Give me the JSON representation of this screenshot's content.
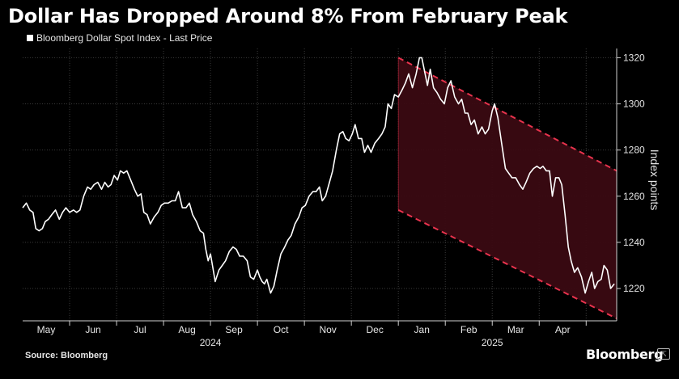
{
  "header": {
    "title": "Dollar Has Dropped Around 8% From February Peak",
    "legend_label": "Bloomberg Dollar Spot Index - Last Price"
  },
  "footer": {
    "source": "Source: Bloomberg",
    "brand": "Bloomberg"
  },
  "colors": {
    "background": "#000000",
    "line": "#ffffff",
    "grid": "#3a3a3a",
    "channel": "#e8334d",
    "channel_fill": "#3a0a12"
  },
  "chart_data": {
    "type": "line",
    "title": "Dollar Has Dropped Around 8% From February Peak",
    "series_name": "Bloomberg Dollar Spot Index - Last Price",
    "ylabel": "Index points",
    "ylim": [
      1206,
      1324
    ],
    "yticks": [
      1220,
      1240,
      1260,
      1280,
      1300,
      1320
    ],
    "xlim": [
      0,
      12.65
    ],
    "months": [
      {
        "label": "May",
        "x": 0.5
      },
      {
        "label": "Jun",
        "x": 1.5
      },
      {
        "label": "Jul",
        "x": 2.5
      },
      {
        "label": "Aug",
        "x": 3.5
      },
      {
        "label": "Sep",
        "x": 4.5
      },
      {
        "label": "Oct",
        "x": 5.5
      },
      {
        "label": "Nov",
        "x": 6.5
      },
      {
        "label": "Dec",
        "x": 7.5
      },
      {
        "label": "Jan",
        "x": 8.5
      },
      {
        "label": "Feb",
        "x": 9.5
      },
      {
        "label": "Mar",
        "x": 10.5
      },
      {
        "label": "Apr",
        "x": 11.5
      }
    ],
    "month_gridlines": [
      1,
      2,
      3,
      4,
      5,
      6,
      7,
      8,
      9,
      10,
      11,
      12
    ],
    "years": [
      {
        "label": "2024",
        "x": 4.0
      },
      {
        "label": "2025",
        "x": 10.0
      }
    ],
    "channel": {
      "upper": [
        [
          8.0,
          1320
        ],
        [
          12.65,
          1271
        ]
      ],
      "lower": [
        [
          8.0,
          1254
        ],
        [
          12.65,
          1207
        ]
      ]
    },
    "points": [
      [
        0.0,
        1255
      ],
      [
        0.08,
        1257
      ],
      [
        0.15,
        1254
      ],
      [
        0.22,
        1253
      ],
      [
        0.28,
        1246
      ],
      [
        0.35,
        1245
      ],
      [
        0.42,
        1246
      ],
      [
        0.48,
        1249
      ],
      [
        0.55,
        1250
      ],
      [
        0.62,
        1252
      ],
      [
        0.7,
        1254
      ],
      [
        0.78,
        1250
      ],
      [
        0.85,
        1253
      ],
      [
        0.92,
        1255
      ],
      [
        1.0,
        1253
      ],
      [
        1.08,
        1254
      ],
      [
        1.15,
        1253
      ],
      [
        1.22,
        1254
      ],
      [
        1.3,
        1260
      ],
      [
        1.38,
        1264
      ],
      [
        1.45,
        1263
      ],
      [
        1.52,
        1265
      ],
      [
        1.6,
        1266
      ],
      [
        1.68,
        1263
      ],
      [
        1.75,
        1266
      ],
      [
        1.82,
        1264
      ],
      [
        1.88,
        1265
      ],
      [
        1.95,
        1269
      ],
      [
        2.02,
        1267
      ],
      [
        2.08,
        1271
      ],
      [
        2.15,
        1270
      ],
      [
        2.22,
        1271
      ],
      [
        2.3,
        1267
      ],
      [
        2.38,
        1263
      ],
      [
        2.45,
        1260
      ],
      [
        2.52,
        1261
      ],
      [
        2.58,
        1253
      ],
      [
        2.65,
        1252
      ],
      [
        2.72,
        1248
      ],
      [
        2.8,
        1251
      ],
      [
        2.88,
        1253
      ],
      [
        2.95,
        1256
      ],
      [
        3.02,
        1257
      ],
      [
        3.1,
        1257
      ],
      [
        3.18,
        1258
      ],
      [
        3.25,
        1258
      ],
      [
        3.32,
        1262
      ],
      [
        3.4,
        1255
      ],
      [
        3.48,
        1255
      ],
      [
        3.55,
        1257
      ],
      [
        3.62,
        1252
      ],
      [
        3.7,
        1249
      ],
      [
        3.78,
        1245
      ],
      [
        3.85,
        1244
      ],
      [
        3.9,
        1237
      ],
      [
        3.95,
        1232
      ],
      [
        4.0,
        1235
      ],
      [
        4.05,
        1229
      ],
      [
        4.1,
        1223
      ],
      [
        4.18,
        1228
      ],
      [
        4.25,
        1230
      ],
      [
        4.32,
        1232
      ],
      [
        4.4,
        1236
      ],
      [
        4.48,
        1238
      ],
      [
        4.55,
        1237
      ],
      [
        4.62,
        1234
      ],
      [
        4.7,
        1234
      ],
      [
        4.78,
        1232
      ],
      [
        4.85,
        1225
      ],
      [
        4.92,
        1224
      ],
      [
        5.0,
        1228
      ],
      [
        5.05,
        1225
      ],
      [
        5.1,
        1223
      ],
      [
        5.15,
        1222
      ],
      [
        5.2,
        1224
      ],
      [
        5.28,
        1218
      ],
      [
        5.35,
        1221
      ],
      [
        5.42,
        1228
      ],
      [
        5.5,
        1235
      ],
      [
        5.58,
        1238
      ],
      [
        5.65,
        1241
      ],
      [
        5.72,
        1243
      ],
      [
        5.8,
        1248
      ],
      [
        5.88,
        1251
      ],
      [
        5.95,
        1255
      ],
      [
        6.02,
        1256
      ],
      [
        6.1,
        1260
      ],
      [
        6.18,
        1262
      ],
      [
        6.25,
        1262
      ],
      [
        6.32,
        1264
      ],
      [
        6.38,
        1258
      ],
      [
        6.45,
        1260
      ],
      [
        6.52,
        1265
      ],
      [
        6.6,
        1271
      ],
      [
        6.68,
        1280
      ],
      [
        6.75,
        1287
      ],
      [
        6.82,
        1288
      ],
      [
        6.88,
        1285
      ],
      [
        6.95,
        1284
      ],
      [
        7.02,
        1287
      ],
      [
        7.08,
        1291
      ],
      [
        7.15,
        1285
      ],
      [
        7.22,
        1285
      ],
      [
        7.28,
        1279
      ],
      [
        7.35,
        1282
      ],
      [
        7.42,
        1279
      ],
      [
        7.5,
        1283
      ],
      [
        7.58,
        1285
      ],
      [
        7.65,
        1287
      ],
      [
        7.72,
        1290
      ],
      [
        7.78,
        1300
      ],
      [
        7.85,
        1298
      ],
      [
        7.92,
        1304
      ],
      [
        8.0,
        1303
      ],
      [
        8.08,
        1306
      ],
      [
        8.15,
        1309
      ],
      [
        8.22,
        1313
      ],
      [
        8.3,
        1307
      ],
      [
        8.38,
        1313
      ],
      [
        8.45,
        1320
      ],
      [
        8.5,
        1320
      ],
      [
        8.55,
        1315
      ],
      [
        8.62,
        1308
      ],
      [
        8.68,
        1315
      ],
      [
        8.75,
        1307
      ],
      [
        8.82,
        1305
      ],
      [
        8.9,
        1302
      ],
      [
        8.98,
        1300
      ],
      [
        9.05,
        1307
      ],
      [
        9.12,
        1310
      ],
      [
        9.2,
        1303
      ],
      [
        9.28,
        1300
      ],
      [
        9.35,
        1302
      ],
      [
        9.42,
        1296
      ],
      [
        9.48,
        1296
      ],
      [
        9.55,
        1291
      ],
      [
        9.62,
        1293
      ],
      [
        9.7,
        1287
      ],
      [
        9.78,
        1290
      ],
      [
        9.85,
        1287
      ],
      [
        9.92,
        1289
      ],
      [
        10.0,
        1297
      ],
      [
        10.05,
        1300
      ],
      [
        10.12,
        1294
      ],
      [
        10.2,
        1283
      ],
      [
        10.28,
        1272
      ],
      [
        10.35,
        1270
      ],
      [
        10.42,
        1268
      ],
      [
        10.5,
        1268
      ],
      [
        10.58,
        1265
      ],
      [
        10.65,
        1263
      ],
      [
        10.72,
        1266
      ],
      [
        10.8,
        1270
      ],
      [
        10.88,
        1272
      ],
      [
        10.95,
        1273
      ],
      [
        11.02,
        1272
      ],
      [
        11.08,
        1273
      ],
      [
        11.15,
        1271
      ],
      [
        11.22,
        1271
      ],
      [
        11.28,
        1260
      ],
      [
        11.35,
        1268
      ],
      [
        11.42,
        1268
      ],
      [
        11.48,
        1265
      ],
      [
        11.55,
        1252
      ],
      [
        11.62,
        1238
      ],
      [
        11.68,
        1232
      ],
      [
        11.75,
        1227
      ],
      [
        11.82,
        1229
      ],
      [
        11.9,
        1225
      ],
      [
        11.98,
        1218
      ],
      [
        12.05,
        1223
      ],
      [
        12.12,
        1227
      ],
      [
        12.18,
        1220
      ],
      [
        12.25,
        1223
      ],
      [
        12.32,
        1224
      ],
      [
        12.38,
        1230
      ],
      [
        12.45,
        1228
      ],
      [
        12.52,
        1220
      ],
      [
        12.6,
        1222
      ]
    ]
  }
}
